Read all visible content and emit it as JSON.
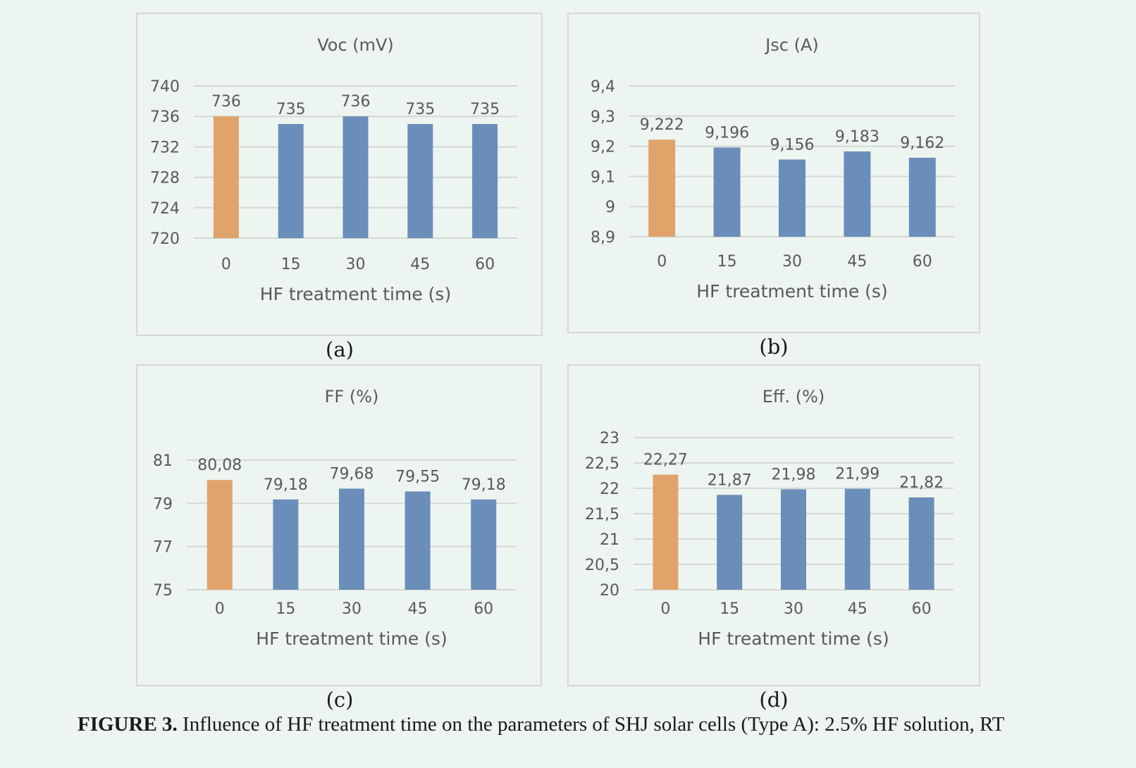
{
  "colors": {
    "highlight": "#e0a46b",
    "bar": "#6a8eb9",
    "grid": "#d4d8d6",
    "text": "#595959"
  },
  "chart_data": [
    {
      "type": "bar",
      "label": "(a)",
      "title": "Voc (mV)",
      "xlabel": "HF treatment time (s)",
      "ylabel": "",
      "categories": [
        "0",
        "15",
        "30",
        "45",
        "60"
      ],
      "values": [
        736,
        735,
        736,
        735,
        735
      ],
      "value_labels": [
        "736",
        "735",
        "736",
        "735",
        "735"
      ],
      "ylim": [
        720,
        740
      ],
      "yticks": [
        720,
        724,
        728,
        732,
        736,
        740
      ],
      "ytick_labels": [
        "720",
        "724",
        "728",
        "732",
        "736",
        "740"
      ],
      "highlight_index": 0,
      "grid": true
    },
    {
      "type": "bar",
      "label": "(b)",
      "title": "Jsc (A)",
      "xlabel": "HF treatment time (s)",
      "ylabel": "",
      "categories": [
        "0",
        "15",
        "30",
        "45",
        "60"
      ],
      "values": [
        9.222,
        9.196,
        9.156,
        9.183,
        9.162
      ],
      "value_labels": [
        "9,222",
        "9,196",
        "9,156",
        "9,183",
        "9,162"
      ],
      "ylim": [
        8.9,
        9.4
      ],
      "yticks": [
        8.9,
        9.0,
        9.1,
        9.2,
        9.3,
        9.4
      ],
      "ytick_labels": [
        "8,9",
        "9",
        "9,1",
        "9,2",
        "9,3",
        "9,4"
      ],
      "highlight_index": 0,
      "grid": true
    },
    {
      "type": "bar",
      "label": "(c)",
      "title": "FF (%)",
      "xlabel": "HF treatment time (s)",
      "ylabel": "",
      "categories": [
        "0",
        "15",
        "30",
        "45",
        "60"
      ],
      "values": [
        80.08,
        79.18,
        79.68,
        79.55,
        79.18
      ],
      "value_labels": [
        "80,08",
        "79,18",
        "79,68",
        "79,55",
        "79,18"
      ],
      "ylim": [
        75,
        81
      ],
      "yticks": [
        75,
        77,
        79,
        81
      ],
      "ytick_labels": [
        "75",
        "77",
        "79",
        "81"
      ],
      "highlight_index": 0,
      "grid": true
    },
    {
      "type": "bar",
      "label": "(d)",
      "title": "Eff. (%)",
      "xlabel": "HF treatment time (s)",
      "ylabel": "",
      "categories": [
        "0",
        "15",
        "30",
        "45",
        "60"
      ],
      "values": [
        22.27,
        21.87,
        21.98,
        21.99,
        21.82
      ],
      "value_labels": [
        "22,27",
        "21,87",
        "21,98",
        "21,99",
        "21,82"
      ],
      "ylim": [
        20,
        23
      ],
      "yticks": [
        20,
        20.5,
        21,
        21.5,
        22,
        22.5,
        23
      ],
      "ytick_labels": [
        "20",
        "20,5",
        "21",
        "21,5",
        "22",
        "22,5",
        "23"
      ],
      "highlight_index": 0,
      "grid": true
    }
  ],
  "caption": {
    "label": "FIGURE 3.",
    "text": " Influence of HF treatment time on the parameters of SHJ solar cells (Type A): 2.5% HF solution, RT"
  }
}
